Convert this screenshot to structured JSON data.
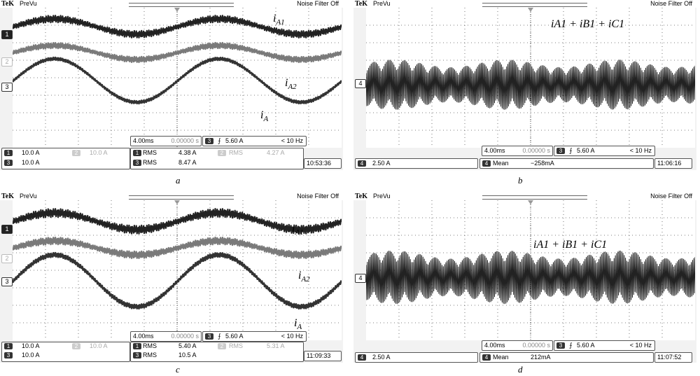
{
  "chart_data": [
    {
      "panel": "a",
      "type": "line",
      "header": {
        "brand": "TeK",
        "mode": "PreVu",
        "filter": "Noise Filter Off"
      },
      "channel_markers": [
        "1",
        "2",
        "3"
      ],
      "traces": [
        {
          "name": "iA1",
          "channel": "1",
          "offset": 27,
          "amplitude": 11,
          "ripple": 5,
          "width": 2.2,
          "color": "#222222"
        },
        {
          "name": "iA2",
          "channel": "2",
          "offset": 64,
          "amplitude": 10,
          "ripple": 4,
          "width": 2.4,
          "color": "#7a7a7a"
        },
        {
          "name": "iA",
          "channel": "3",
          "offset": 104,
          "amplitude": 31,
          "ripple": 2,
          "width": 2.6,
          "color": "#333333"
        }
      ],
      "labels": [
        {
          "base": "i",
          "sub": "A1"
        },
        {
          "base": "i",
          "sub": "A2"
        },
        {
          "base": "i",
          "sub": "A"
        }
      ],
      "timebase": "4.00ms",
      "delay": "0.00000 s",
      "trigger": {
        "channel": "3",
        "level": "5.60 A",
        "freq": "< 10 Hz"
      },
      "scales": [
        {
          "channel": "1",
          "value": "10.0 A"
        },
        {
          "channel": "2",
          "value": "10.0 A"
        },
        {
          "channel": "3",
          "value": "10.0 A"
        }
      ],
      "measurements": [
        {
          "channel": "1",
          "type": "RMS",
          "value": "4.38 A"
        },
        {
          "channel": "2",
          "type": "RMS",
          "value": "4.27 A"
        },
        {
          "channel": "3",
          "type": "RMS",
          "value": "8.47 A"
        }
      ],
      "time": "10:53:36",
      "caption": "a"
    },
    {
      "panel": "b",
      "type": "line",
      "header": {
        "brand": "TeK",
        "mode": "PreVu",
        "filter": "Noise Filter Off"
      },
      "channel_markers": [
        "4"
      ],
      "traces": [
        {
          "name": "iA1 + iB1 + iC1",
          "channel": "4",
          "offset": 110,
          "amplitude": 30,
          "ripple": 30,
          "width": 1,
          "color": "#222222"
        }
      ],
      "labels": [
        {
          "terms": [
            "iA1",
            "iB1",
            "iC1"
          ]
        }
      ],
      "timebase": "4.00ms",
      "delay": "0.00000 s",
      "trigger": {
        "channel": "3",
        "level": "5.60 A",
        "freq": "< 10 Hz"
      },
      "scales": [
        {
          "channel": "4",
          "value": "2.50 A"
        }
      ],
      "measurements": [
        {
          "channel": "4",
          "type": "Mean",
          "value": "−258mA"
        }
      ],
      "time": "11:06:16",
      "caption": "b"
    },
    {
      "panel": "c",
      "type": "line",
      "header": {
        "brand": "TeK",
        "mode": "PreVu",
        "filter": "Noise Filter Off"
      },
      "channel_markers": [
        "1",
        "2",
        "3"
      ],
      "traces": [
        {
          "name": "iA1",
          "channel": "1",
          "offset": 30,
          "amplitude": 12,
          "ripple": 6,
          "width": 2.2,
          "color": "#222222"
        },
        {
          "name": "iA2",
          "channel": "2",
          "offset": 68,
          "amplitude": 10,
          "ripple": 5,
          "width": 2.4,
          "color": "#7a7a7a"
        },
        {
          "name": "iA",
          "channel": "3",
          "offset": 115,
          "amplitude": 37,
          "ripple": 3,
          "width": 2.6,
          "color": "#333333"
        }
      ],
      "labels": [
        {
          "base": "i",
          "sub": "A1"
        },
        {
          "base": "i",
          "sub": "A2"
        },
        {
          "base": "i",
          "sub": "A"
        }
      ],
      "timebase": "4.00ms",
      "delay": "0.00000 s",
      "trigger": {
        "channel": "3",
        "level": "5.60 A",
        "freq": "< 10 Hz"
      },
      "scales": [
        {
          "channel": "1",
          "value": "10.0 A"
        },
        {
          "channel": "2",
          "value": "10.0 A"
        },
        {
          "channel": "3",
          "value": "10.0 A"
        }
      ],
      "measurements": [
        {
          "channel": "1",
          "type": "RMS",
          "value": "5.40 A"
        },
        {
          "channel": "2",
          "type": "RMS",
          "value": "5.31 A"
        },
        {
          "channel": "3",
          "type": "RMS",
          "value": "10.5 A"
        }
      ],
      "time": "11:09:33",
      "caption": "c"
    },
    {
      "panel": "d",
      "type": "line",
      "header": {
        "brand": "TeK",
        "mode": "PreVu",
        "filter": "Noise Filter Off"
      },
      "channel_markers": [
        "4"
      ],
      "traces": [
        {
          "name": "iA1 + iB1 + iC1",
          "channel": "4",
          "offset": 110,
          "amplitude": 32,
          "ripple": 32,
          "width": 1,
          "color": "#222222"
        }
      ],
      "labels": [
        {
          "terms": [
            "iA1",
            "iB1",
            "iC1"
          ]
        }
      ],
      "timebase": "4.00ms",
      "delay": "0.00000 s",
      "trigger": {
        "channel": "3",
        "level": "5.60 A",
        "freq": "< 10 Hz"
      },
      "scales": [
        {
          "channel": "4",
          "value": "2.50 A"
        }
      ],
      "measurements": [
        {
          "channel": "4",
          "type": "Mean",
          "value": "212mA"
        }
      ],
      "time": "11:07:52",
      "caption": "d"
    }
  ]
}
